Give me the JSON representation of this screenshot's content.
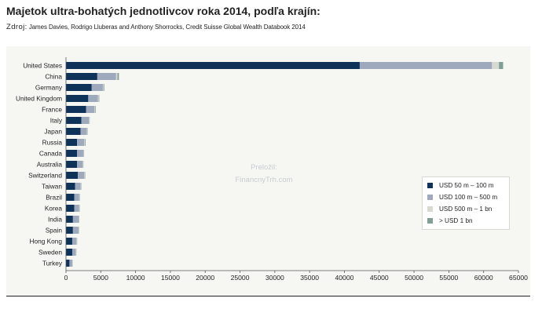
{
  "title": "Majetok ultra-bohatých jednotlivcov roka 2014, podľa krajín:",
  "source": {
    "prefix": "Zdroj:",
    "text": "James Davies, Rodrigo Lluberas and Anthony Shorrocks, Credit Suisse Global Wealth Databook 2014"
  },
  "watermark": {
    "line1": "Preložil:",
    "line2": "FinancnyTrh.com"
  },
  "colors": {
    "background": "#f6f6f3",
    "usd_50m_100m": "#0f3358",
    "usd_100m_500m": "#9ea9bd",
    "usd_500m_1bn": "#d6dad1",
    "usd_over_1bn": "#7f9e96"
  },
  "chart_data": {
    "type": "bar",
    "orientation": "horizontal",
    "stacked": true,
    "categories": [
      "United States",
      "China",
      "Germany",
      "United Kingdom",
      "France",
      "Italy",
      "Japan",
      "Russia",
      "Canada",
      "Australia",
      "Switzerland",
      "Taiwan",
      "Brazil",
      "Korea",
      "India",
      "Spain",
      "Hong Kong",
      "Sweden",
      "Turkey"
    ],
    "series": [
      {
        "name": "USD 50 m – 100 m",
        "color": "#0f3358",
        "values": [
          42200,
          4500,
          3700,
          3200,
          2900,
          2200,
          2100,
          1600,
          1600,
          1600,
          1700,
          1300,
          1200,
          1200,
          1000,
          1000,
          900,
          900,
          500
        ]
      },
      {
        "name": "USD 100 m – 500 m",
        "color": "#9ea9bd",
        "values": [
          19000,
          2700,
          1600,
          1400,
          1200,
          1100,
          900,
          1000,
          900,
          800,
          900,
          800,
          700,
          700,
          800,
          800,
          600,
          500,
          400
        ]
      },
      {
        "name": "USD 500 m – 1 bn",
        "color": "#d6dad1",
        "values": [
          1000,
          200,
          100,
          100,
          100,
          50,
          50,
          100,
          50,
          50,
          80,
          50,
          50,
          50,
          50,
          50,
          50,
          50,
          30
        ]
      },
      {
        "name": "> USD 1 bn",
        "color": "#7f9e96",
        "values": [
          600,
          200,
          100,
          80,
          80,
          50,
          50,
          100,
          50,
          50,
          80,
          50,
          50,
          40,
          60,
          40,
          50,
          40,
          30
        ]
      }
    ],
    "x_ticks": [
      "0",
      "5000",
      "10000",
      "15000",
      "20000",
      "25000",
      "30000",
      "35000",
      "40000",
      "45000",
      "50000",
      "55000",
      "60000",
      "65000"
    ],
    "xlim": [
      0,
      65000
    ],
    "grid": false,
    "legend_position": "lower-right"
  }
}
